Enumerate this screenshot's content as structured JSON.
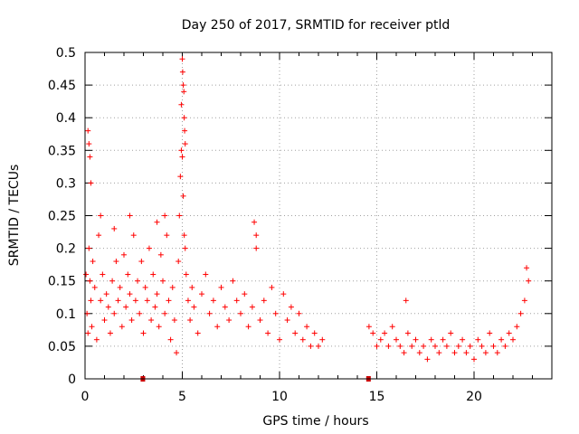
{
  "chart_data": {
    "type": "scatter",
    "title": "Day 250 of 2017, SRMTID for receiver ptld",
    "xlabel": "GPS time / hours",
    "ylabel": "SRMTID / TECUs",
    "xlim": [
      0,
      24
    ],
    "ylim": [
      0,
      0.5
    ],
    "xticks": [
      0,
      5,
      10,
      15,
      20
    ],
    "xtick_labels": [
      "0",
      "5",
      "10",
      "15",
      "20"
    ],
    "yticks": [
      0,
      0.05,
      0.1,
      0.15,
      0.2,
      0.25,
      0.3,
      0.35,
      0.4,
      0.45,
      0.5
    ],
    "ytick_labels": [
      "0",
      "0.05",
      "0.1",
      "0.15",
      "0.2",
      "0.25",
      "0.3",
      "0.35",
      "0.4",
      "0.45",
      "0.5"
    ],
    "grid": true,
    "marker": "+",
    "marker_color": "#ff0000",
    "gap_markers_x": [
      2.95,
      14.55
    ],
    "series": [
      {
        "name": "SRMTID",
        "x": [
          0.05,
          0.1,
          0.15,
          0.2,
          0.25,
          0.3,
          0.35,
          0.4,
          0.5,
          0.6,
          0.7,
          0.8,
          0.9,
          1.0,
          1.1,
          1.2,
          1.3,
          1.4,
          1.5,
          1.6,
          1.7,
          1.8,
          1.9,
          2.0,
          2.1,
          2.2,
          2.3,
          2.4,
          2.5,
          2.6,
          2.7,
          2.8,
          2.9,
          3.0,
          3.1,
          3.2,
          3.3,
          3.4,
          3.5,
          3.6,
          3.7,
          3.8,
          3.9,
          4.0,
          4.1,
          4.2,
          4.3,
          4.4,
          4.5,
          4.6,
          4.7,
          4.8,
          4.85,
          4.9,
          4.95,
          5.0,
          5.05,
          5.1,
          5.15,
          5.2,
          5.3,
          5.4,
          5.5,
          5.6,
          5.8,
          6.0,
          6.2,
          6.4,
          6.6,
          6.8,
          7.0,
          7.2,
          7.4,
          7.6,
          7.8,
          8.0,
          8.2,
          8.4,
          8.6,
          8.8,
          9.0,
          9.2,
          9.4,
          9.6,
          9.8,
          10.0,
          10.2,
          10.4,
          10.6,
          10.8,
          11.0,
          11.2,
          11.4,
          11.6,
          11.8,
          12.0,
          12.2,
          14.6,
          14.8,
          15.0,
          15.2,
          15.4,
          15.6,
          15.8,
          16.0,
          16.2,
          16.4,
          16.6,
          16.8,
          17.0,
          17.2,
          17.4,
          17.6,
          17.8,
          18.0,
          18.2,
          18.4,
          18.6,
          18.8,
          19.0,
          19.2,
          19.4,
          19.6,
          19.8,
          20.0,
          20.2,
          20.4,
          20.6,
          20.8,
          21.0,
          21.2,
          21.4,
          21.6,
          21.8,
          22.0,
          22.2,
          22.4,
          22.6,
          22.8,
          0.15,
          0.2,
          0.25,
          0.3,
          0.8,
          1.5,
          2.3,
          3.7,
          4.1,
          4.95,
          5.0,
          5.02,
          5.05,
          5.08,
          5.1,
          5.12,
          5.15,
          8.7,
          8.8,
          16.5,
          22.7
        ],
        "y": [
          0.16,
          0.1,
          0.07,
          0.2,
          0.15,
          0.12,
          0.08,
          0.18,
          0.14,
          0.06,
          0.22,
          0.12,
          0.16,
          0.09,
          0.13,
          0.11,
          0.07,
          0.15,
          0.1,
          0.18,
          0.12,
          0.14,
          0.08,
          0.19,
          0.11,
          0.16,
          0.13,
          0.09,
          0.22,
          0.12,
          0.15,
          0.1,
          0.18,
          0.07,
          0.14,
          0.12,
          0.2,
          0.09,
          0.16,
          0.11,
          0.13,
          0.08,
          0.19,
          0.15,
          0.1,
          0.22,
          0.12,
          0.06,
          0.14,
          0.09,
          0.04,
          0.18,
          0.25,
          0.31,
          0.35,
          0.34,
          0.28,
          0.22,
          0.2,
          0.16,
          0.12,
          0.09,
          0.14,
          0.11,
          0.07,
          0.13,
          0.16,
          0.1,
          0.12,
          0.08,
          0.14,
          0.11,
          0.09,
          0.15,
          0.12,
          0.1,
          0.13,
          0.08,
          0.11,
          0.2,
          0.09,
          0.12,
          0.07,
          0.14,
          0.1,
          0.06,
          0.13,
          0.09,
          0.11,
          0.07,
          0.1,
          0.06,
          0.08,
          0.05,
          0.07,
          0.05,
          0.06,
          0.08,
          0.07,
          0.05,
          0.06,
          0.07,
          0.05,
          0.08,
          0.06,
          0.05,
          0.04,
          0.07,
          0.05,
          0.06,
          0.04,
          0.05,
          0.03,
          0.06,
          0.05,
          0.04,
          0.06,
          0.05,
          0.07,
          0.04,
          0.05,
          0.06,
          0.04,
          0.05,
          0.03,
          0.06,
          0.05,
          0.04,
          0.07,
          0.05,
          0.04,
          0.06,
          0.05,
          0.07,
          0.06,
          0.08,
          0.1,
          0.12,
          0.15,
          0.38,
          0.36,
          0.34,
          0.3,
          0.25,
          0.23,
          0.25,
          0.24,
          0.25,
          0.42,
          0.49,
          0.47,
          0.45,
          0.44,
          0.4,
          0.38,
          0.36,
          0.24,
          0.22,
          0.12,
          0.17
        ]
      }
    ]
  }
}
